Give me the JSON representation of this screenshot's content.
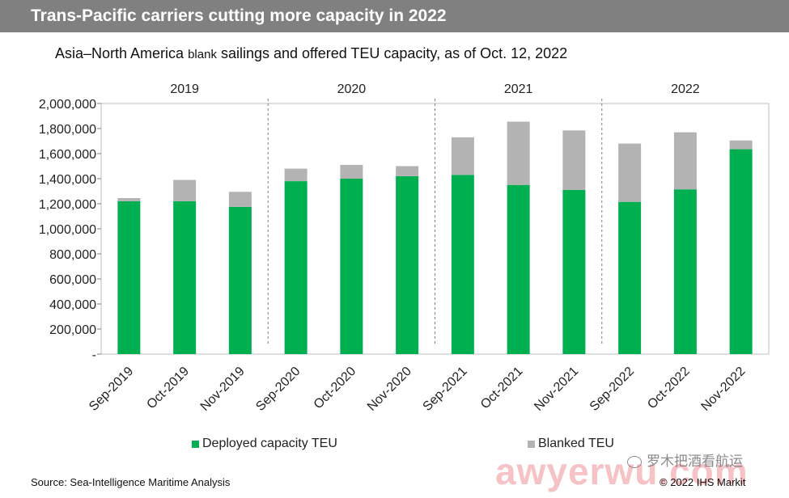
{
  "header": {
    "title": "Trans-Pacific carriers cutting more capacity in 2022",
    "subtitle_part1": "Asia–North America ",
    "subtitle_part2": "blank",
    "subtitle_part3": " sailings and offered TEU capacity, as of Oct. 12, 2022"
  },
  "legend": {
    "deployed": "Deployed capacity TEU",
    "blanked": "Blanked TEU"
  },
  "footer": {
    "source": "Source: Sea-Intelligence Maritime Analysis",
    "copyright": "© 2022 IHS Markit"
  },
  "watermark": {
    "text": "awyerwu.com",
    "wechat": "罗木把酒看航运"
  },
  "chart_data": {
    "type": "bar",
    "stacked": true,
    "categories": [
      "Sep-2019",
      "Oct-2019",
      "Nov-2019",
      "Sep-2020",
      "Oct-2020",
      "Nov-2020",
      "Sep-2021",
      "Oct-2021",
      "Nov-2021",
      "Sep-2022",
      "Oct-2022",
      "Nov-2022"
    ],
    "groups": [
      {
        "label": "2019",
        "start": 0,
        "end": 2
      },
      {
        "label": "2020",
        "start": 3,
        "end": 5
      },
      {
        "label": "2021",
        "start": 6,
        "end": 8
      },
      {
        "label": "2022",
        "start": 9,
        "end": 11
      }
    ],
    "series": [
      {
        "name": "Deployed capacity TEU",
        "color": "#00B050",
        "values": [
          1220000,
          1220000,
          1175000,
          1380000,
          1400000,
          1420000,
          1430000,
          1350000,
          1310000,
          1215000,
          1315000,
          1635000
        ]
      },
      {
        "name": "Blanked TEU",
        "color": "#B3B3B3",
        "values": [
          25000,
          170000,
          120000,
          100000,
          110000,
          80000,
          300000,
          505000,
          475000,
          465000,
          455000,
          70000
        ]
      }
    ],
    "ylim": [
      0,
      2000000
    ],
    "yticks": [
      0,
      200000,
      400000,
      600000,
      800000,
      1000000,
      1200000,
      1400000,
      1600000,
      1800000,
      2000000
    ],
    "ytick_labels": [
      "-",
      "200,000",
      "400,000",
      "600,000",
      "800,000",
      "1,000,000",
      "1,200,000",
      "1,400,000",
      "1,600,000",
      "1,800,000",
      "2,000,000"
    ],
    "grid": false,
    "legend_position": "bottom"
  }
}
